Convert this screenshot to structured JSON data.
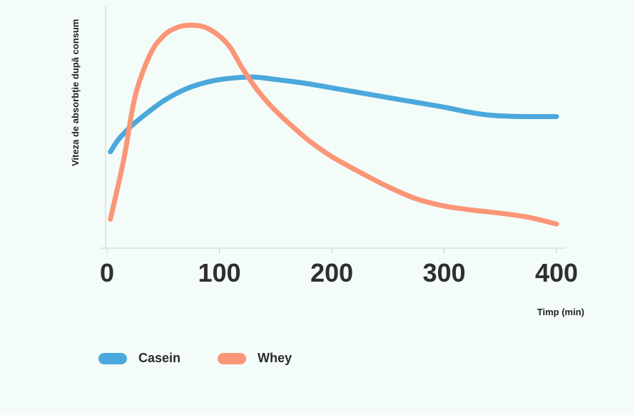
{
  "chart_data": {
    "type": "line",
    "xlabel": "Timp (min)",
    "ylabel": "Viteza de absorbție după consum",
    "xlim": [
      0,
      400
    ],
    "ylim": [
      0,
      100
    ],
    "x_ticks": [
      "0",
      "100",
      "200",
      "300",
      "400"
    ],
    "y_ticks_shown": false,
    "grid": false,
    "legend_position": "bottom-left",
    "series": [
      {
        "name": "Casein",
        "color": "#4aa8dc",
        "x": [
          3,
          10,
          20,
          30,
          50,
          70,
          90,
          110,
          130,
          150,
          175,
          200,
          225,
          250,
          275,
          300,
          320,
          340,
          360,
          380,
          400
        ],
        "y": [
          40,
          45,
          50,
          54,
          61,
          66,
          69,
          70.5,
          71,
          70,
          68.5,
          66.5,
          64.5,
          62.5,
          60.5,
          58.5,
          56.6,
          55.2,
          54.7,
          54.6,
          54.6
        ]
      },
      {
        "name": "Whey",
        "color": "#fa9677",
        "x": [
          3,
          15,
          25,
          38,
          50,
          62,
          75,
          88,
          100,
          110,
          120,
          130,
          140,
          150,
          165,
          180,
          200,
          225,
          250,
          275,
          300,
          325,
          350,
          375,
          400
        ],
        "y": [
          12,
          37,
          63,
          80,
          88,
          91.5,
          92.5,
          91.5,
          88,
          83,
          75,
          68,
          62,
          57,
          50.5,
          44.5,
          38,
          31.5,
          25.5,
          20.5,
          17.5,
          15.8,
          14.5,
          12.8,
          10
        ]
      }
    ]
  }
}
